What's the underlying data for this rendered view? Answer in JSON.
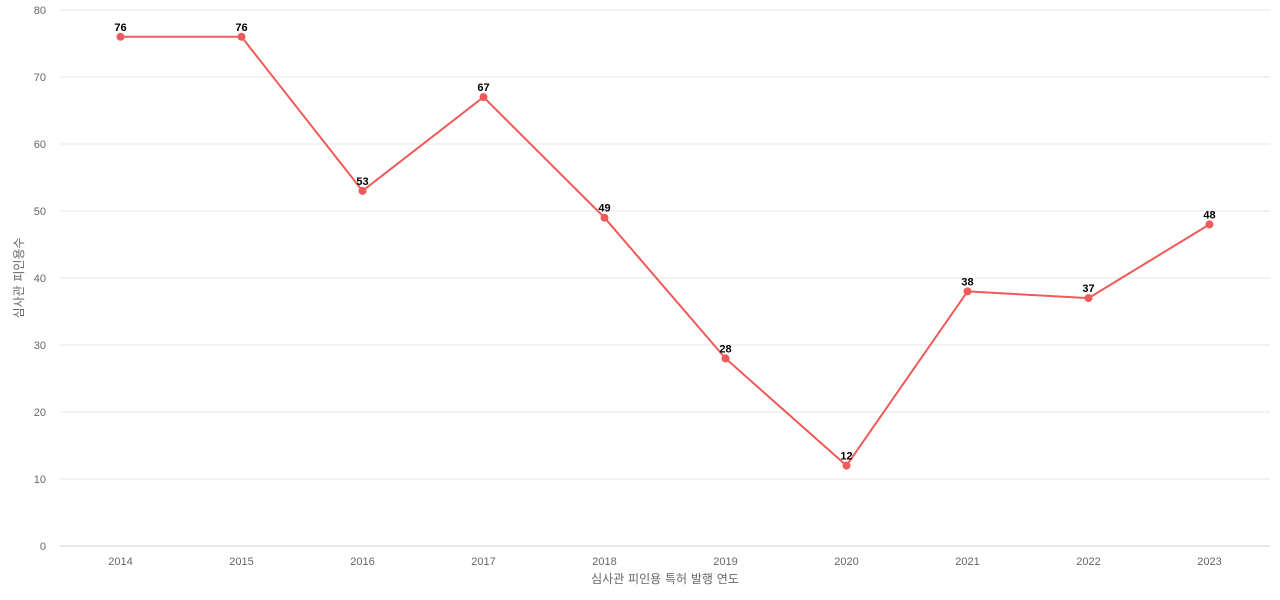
{
  "chart_data": {
    "type": "line",
    "title": "",
    "xlabel": "심사관 피인용 특허 발행 연도",
    "ylabel": "심사관 피인용수",
    "x": [
      "2014",
      "2015",
      "2016",
      "2017",
      "2018",
      "2019",
      "2020",
      "2021",
      "2022",
      "2023"
    ],
    "ylim": [
      0,
      80
    ],
    "yticks": [
      0,
      10,
      20,
      30,
      40,
      50,
      60,
      70,
      80
    ],
    "grid": true,
    "series": [
      {
        "values": [
          76,
          76,
          53,
          67,
          49,
          28,
          12,
          38,
          37,
          48
        ],
        "color": "#f05a5a"
      }
    ]
  }
}
